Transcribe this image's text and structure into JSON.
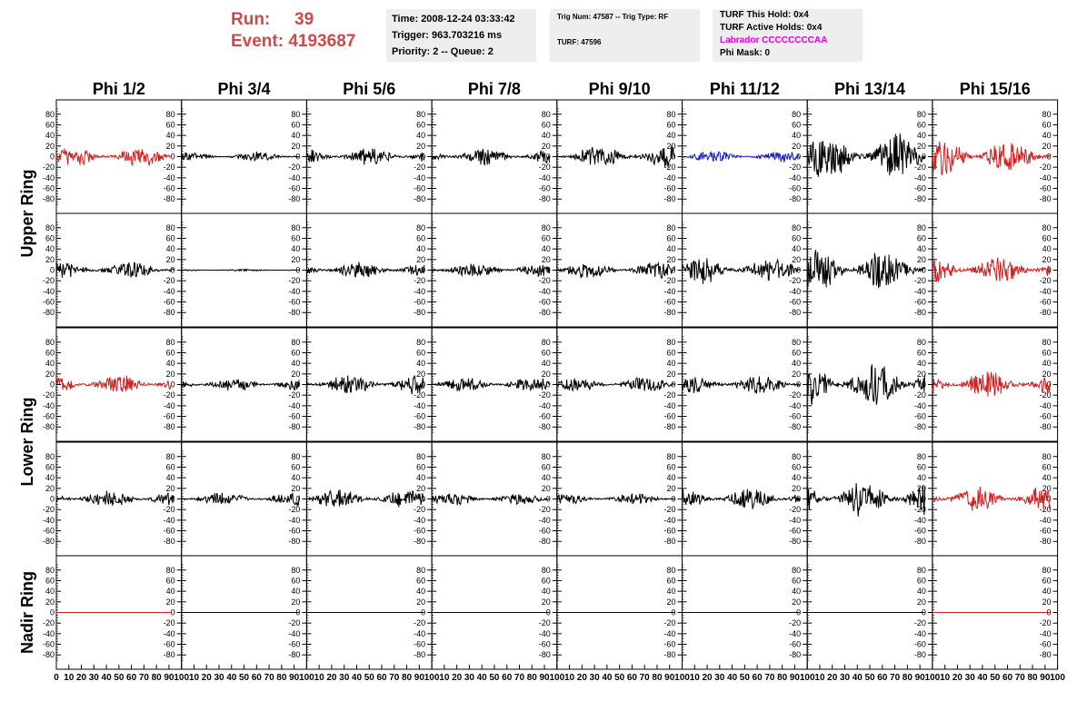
{
  "run_info": {
    "run_label": "Run:",
    "run_value": "39",
    "event_label": "Event:",
    "event_value": "4193687"
  },
  "trigger_box": {
    "time": "Time: 2008-12-24 03:33:42",
    "trigger": "Trigger: 963.703216 ms",
    "priority": "Priority: 2 -- Queue: 2"
  },
  "trig_box": {
    "trig_num": "Trig Num: 47587 -- Trig Type: RF",
    "turf": "TURF: 47596"
  },
  "turf_box": {
    "this_hold": "TURF This Hold: 0x4",
    "active_holds": "TURF Active Holds: 0x4",
    "labrador": "Labrador CCCCCCCCAA",
    "phi_mask": "Phi Mask: 0"
  },
  "columns": [
    "Phi 1/2",
    "Phi 3/4",
    "Phi 5/6",
    "Phi 7/8",
    "Phi 9/10",
    "Phi 11/12",
    "Phi 13/14",
    "Phi 15/16"
  ],
  "rings": [
    "Upper Ring",
    "Lower Ring",
    "Nadir Ring"
  ],
  "colors": {
    "red": "#cc2222",
    "black": "#000000",
    "blue": "#1c1cb4",
    "label_red": "#d04848",
    "magenta": "#e400e4",
    "box_bg": "#eeeeee"
  },
  "chart_data": {
    "type": "line",
    "ylim": [
      -95,
      95
    ],
    "xlim": [
      0,
      100
    ],
    "y_ticks": [
      80,
      60,
      40,
      20,
      0,
      -20,
      -40,
      -60,
      -80
    ],
    "x_tick_labels_first": [
      "0",
      "10",
      "20",
      "30",
      "40",
      "50",
      "60",
      "70",
      "80",
      "90",
      "100"
    ],
    "x_tick_labels_rest": [
      "10",
      "20",
      "30",
      "40",
      "50",
      "60",
      "70",
      "80",
      "90",
      "100"
    ],
    "grid": false,
    "row_groups": [
      {
        "ring": "Upper Ring",
        "rows": [
          0,
          1
        ]
      },
      {
        "ring": "Lower Ring",
        "rows": [
          2,
          3
        ]
      },
      {
        "ring": "Nadir Ring",
        "rows": [
          4
        ]
      }
    ],
    "panels": [
      [
        {
          "color": "red",
          "amplitude": 22,
          "x_end": 92
        },
        {
          "color": "black",
          "amplitude": 10,
          "x_end": 94
        },
        {
          "color": "black",
          "amplitude": 18,
          "x_end": 94
        },
        {
          "color": "black",
          "amplitude": 18,
          "x_end": 94
        },
        {
          "color": "black",
          "amplitude": 24,
          "x_end": 94
        },
        {
          "color": "blue",
          "amplitude": 12,
          "x_end": 94
        },
        {
          "color": "black",
          "amplitude": 50,
          "x_end": 94
        },
        {
          "color": "red",
          "amplitude": 38,
          "x_end": 94
        }
      ],
      [
        {
          "color": "black",
          "amplitude": 20,
          "x_end": 94
        },
        {
          "color": "black",
          "amplitude": 2,
          "x_end": 94
        },
        {
          "color": "black",
          "amplitude": 18,
          "x_end": 94
        },
        {
          "color": "black",
          "amplitude": 16,
          "x_end": 94
        },
        {
          "color": "black",
          "amplitude": 18,
          "x_end": 94
        },
        {
          "color": "black",
          "amplitude": 28,
          "x_end": 94
        },
        {
          "color": "black",
          "amplitude": 45,
          "x_end": 94
        },
        {
          "color": "red",
          "amplitude": 30,
          "x_end": 94
        }
      ],
      [
        {
          "color": "red",
          "amplitude": 20,
          "x_end": 92
        },
        {
          "color": "black",
          "amplitude": 15,
          "x_end": 94
        },
        {
          "color": "black",
          "amplitude": 22,
          "x_end": 94
        },
        {
          "color": "black",
          "amplitude": 16,
          "x_end": 94
        },
        {
          "color": "black",
          "amplitude": 16,
          "x_end": 94
        },
        {
          "color": "black",
          "amplitude": 20,
          "x_end": 94
        },
        {
          "color": "black",
          "amplitude": 48,
          "x_end": 94
        },
        {
          "color": "red",
          "amplitude": 28,
          "x_end": 94
        }
      ],
      [
        {
          "color": "black",
          "amplitude": 18,
          "x_end": 94
        },
        {
          "color": "black",
          "amplitude": 14,
          "x_end": 94
        },
        {
          "color": "black",
          "amplitude": 20,
          "x_end": 94
        },
        {
          "color": "black",
          "amplitude": 14,
          "x_end": 94
        },
        {
          "color": "black",
          "amplitude": 12,
          "x_end": 94
        },
        {
          "color": "black",
          "amplitude": 24,
          "x_end": 94
        },
        {
          "color": "black",
          "amplitude": 38,
          "x_end": 94
        },
        {
          "color": "red",
          "amplitude": 28,
          "x_end": 94
        }
      ],
      [
        {
          "color": "red",
          "amplitude": 0,
          "x_end": 92
        },
        {
          "color": "black",
          "amplitude": 0,
          "x_end": 94
        },
        {
          "color": "black",
          "amplitude": 0,
          "x_end": 94
        },
        {
          "color": "black",
          "amplitude": 0,
          "x_end": 94
        },
        {
          "color": "black",
          "amplitude": 0,
          "x_end": 94
        },
        {
          "color": "black",
          "amplitude": 0,
          "x_end": 94
        },
        {
          "color": "black",
          "amplitude": 0,
          "x_end": 94
        },
        {
          "color": "red",
          "amplitude": 0,
          "x_end": 94
        }
      ]
    ]
  }
}
